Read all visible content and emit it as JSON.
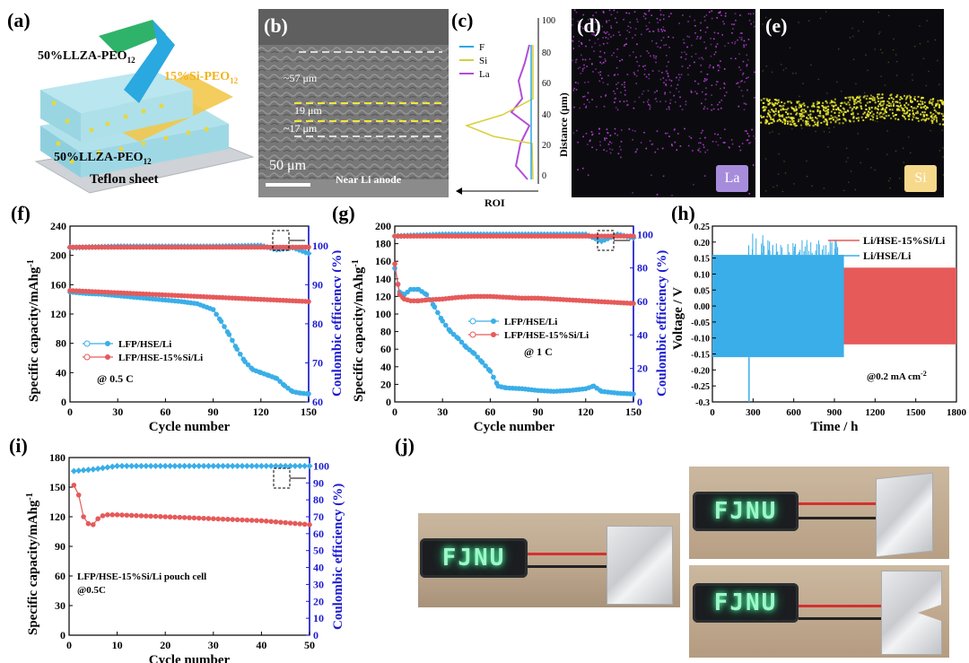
{
  "labels": {
    "a": "(a)",
    "b": "(b)",
    "c": "(c)",
    "d": "(d)",
    "e": "(e)",
    "f": "(f)",
    "g": "(g)",
    "h": "(h)",
    "i": "(i)",
    "j": "(j)"
  },
  "panel_a": {
    "top_layer": "50%LLZA-PEO",
    "mid_layer": "15%Si-PEO",
    "bottom_layer": "50%LLZA-PEO",
    "sub": "12",
    "substrate": "Teflon sheet",
    "colors": {
      "llza": "#9fdbe8",
      "si": "#f2c84b",
      "substrate": "#cfd2d6",
      "arrow_green": "#2fb36a",
      "arrow_blue": "#2aa8e0"
    }
  },
  "panel_b": {
    "dim_top": "~57 μm",
    "dim_mid": "19 μm",
    "dim_bot": "~17 μm",
    "scale": "50 μm",
    "caption": "Near Li anode"
  },
  "panel_c": {
    "legend": [
      "F",
      "Si",
      "La"
    ],
    "colors": [
      "#2aa8e0",
      "#d9cf3a",
      "#b04fd8"
    ],
    "ylabel": "Distance (μm)",
    "xlabel": "ROI",
    "ticks": [
      "100",
      "80",
      "60",
      "40",
      "20",
      "0"
    ]
  },
  "panel_d": {
    "element": "La",
    "color": "#c040e0"
  },
  "panel_e": {
    "element": "Si",
    "color": "#f0ee30"
  },
  "chart_f": {
    "type": "line",
    "xlabel": "Cycle number",
    "ylabel": "Specific capacity/mAhg",
    "ylabel_sup": "-1",
    "y2label": "Coulombic efficiency (%)",
    "xticks": [
      "0",
      "30",
      "60",
      "90",
      "120",
      "150"
    ],
    "yticks": [
      "0",
      "40",
      "80",
      "120",
      "160",
      "200",
      "240"
    ],
    "y2ticks": [
      "60",
      "70",
      "80",
      "90",
      "100"
    ],
    "legend": [
      "LFP/HSE/Li",
      "LFP/HSE-15%Si/Li"
    ],
    "rate": "@ 0.5 C"
  },
  "chart_g": {
    "type": "line",
    "xlabel": "Cycle number",
    "ylabel": "Specific capacity/mAhg",
    "ylabel_sup": "-1",
    "y2label": "Coulombic efficiency (%)",
    "xticks": [
      "0",
      "30",
      "60",
      "90",
      "120",
      "150"
    ],
    "yticks": [
      "0",
      "20",
      "40",
      "60",
      "80",
      "100",
      "120",
      "140",
      "160",
      "180",
      "200"
    ],
    "y2ticks": [
      "0",
      "20",
      "40",
      "60",
      "80",
      "100"
    ],
    "legend": [
      "LFP/HSE/Li",
      "LFP/HSE-15%Si/Li"
    ],
    "rate": "@ 1 C"
  },
  "chart_h": {
    "type": "line",
    "xlabel": "Time / h",
    "ylabel": "Voltage / V",
    "xticks": [
      "0",
      "300",
      "600",
      "900",
      "1200",
      "1500",
      "1800"
    ],
    "yticks": [
      "0.25",
      "0.20",
      "0.15",
      "0.10",
      "0.05",
      "0.00",
      "-0.05",
      "-0.10",
      "-0.15",
      "-0.20",
      "-0.25",
      "-0.3"
    ],
    "legend": [
      "Li/HSE-15%Si/Li",
      "Li/HSE/Li"
    ],
    "current": "@0.2 mA cm",
    "current_sup": "-2"
  },
  "chart_i": {
    "type": "line",
    "xlabel": "Cycle number",
    "ylabel": "Specific capacity/mAhg",
    "ylabel_sup": "-1",
    "y2label": "Coulombic efficiency (%)",
    "xticks": [
      "0",
      "10",
      "20",
      "30",
      "40",
      "50"
    ],
    "yticks": [
      "0",
      "30",
      "60",
      "90",
      "120",
      "150",
      "180"
    ],
    "y2ticks": [
      "0",
      "10",
      "20",
      "30",
      "40",
      "50",
      "60",
      "70",
      "80",
      "90",
      "100"
    ],
    "note1": "LFP/HSE-15%Si/Li pouch cell",
    "note2": "@0.5C"
  },
  "panel_j": {
    "led_text": "FJNU"
  },
  "colors": {
    "blue": "#3aaee8",
    "red": "#e65a5a",
    "axis_blue": "#1a1ad0"
  },
  "chart_data": [
    {
      "id": "f",
      "type": "line",
      "xlim": [
        0,
        150
      ],
      "ylim": [
        0,
        240
      ],
      "y2lim": [
        60,
        105
      ],
      "series": [
        {
          "name": "LFP/HSE/Li",
          "axis": "capacity",
          "x": [
            0,
            10,
            20,
            30,
            40,
            50,
            60,
            70,
            80,
            90,
            95,
            100,
            105,
            110,
            115,
            120,
            125,
            130,
            135,
            140,
            145,
            150
          ],
          "values": [
            150,
            148,
            147,
            145,
            143,
            141,
            139,
            137,
            134,
            126,
            110,
            92,
            72,
            55,
            44,
            40,
            36,
            32,
            22,
            14,
            12,
            11
          ]
        },
        {
          "name": "LFP/HSE-15%Si/Li",
          "axis": "capacity",
          "x": [
            0,
            10,
            20,
            30,
            40,
            50,
            60,
            70,
            80,
            90,
            100,
            110,
            120,
            130,
            140,
            150
          ],
          "values": [
            152,
            151,
            150,
            149,
            148,
            147,
            146,
            145,
            144,
            143,
            142,
            141,
            140,
            139,
            138,
            137
          ]
        },
        {
          "name": "LFP/HSE/Li CE",
          "axis": "ce",
          "x": [
            0,
            30,
            60,
            90,
            120,
            130,
            140,
            150
          ],
          "values": [
            99.5,
            99.8,
            99.8,
            99.8,
            100,
            99,
            99.5,
            98
          ]
        },
        {
          "name": "LFP/HSE-15%Si/Li CE",
          "axis": "ce",
          "x": [
            0,
            30,
            60,
            90,
            120,
            150
          ],
          "values": [
            99.6,
            99.6,
            99.6,
            99.6,
            99.6,
            99.6
          ]
        }
      ]
    },
    {
      "id": "g",
      "type": "line",
      "xlim": [
        0,
        150
      ],
      "ylim": [
        0,
        200
      ],
      "y2lim": [
        0,
        105
      ],
      "series": [
        {
          "name": "LFP/HSE/Li",
          "axis": "capacity",
          "x": [
            0,
            3,
            6,
            10,
            15,
            20,
            25,
            30,
            35,
            40,
            45,
            50,
            55,
            60,
            65,
            70,
            80,
            90,
            100,
            110,
            120,
            125,
            130,
            140,
            150
          ],
          "values": [
            152,
            125,
            122,
            128,
            128,
            122,
            108,
            92,
            80,
            72,
            62,
            55,
            45,
            35,
            18,
            16,
            15,
            13,
            12,
            13,
            15,
            18,
            12,
            10,
            9
          ]
        },
        {
          "name": "LFP/HSE-15%Si/Li",
          "axis": "capacity",
          "x": [
            0,
            3,
            6,
            10,
            15,
            20,
            30,
            40,
            50,
            60,
            70,
            80,
            90,
            100,
            110,
            120,
            130,
            140,
            150
          ],
          "values": [
            157,
            122,
            117,
            115,
            115,
            116,
            117,
            119,
            120,
            120,
            119,
            118,
            118,
            117,
            116,
            115,
            114,
            113,
            112
          ]
        },
        {
          "name": "LFP/HSE/Li CE",
          "axis": "ce",
          "x": [
            0,
            30,
            60,
            90,
            120,
            130,
            140,
            150
          ],
          "values": [
            99,
            100,
            100,
            100,
            100,
            96,
            100,
            98
          ]
        },
        {
          "name": "LFP/HSE-15%Si/Li CE",
          "axis": "ce",
          "x": [
            0,
            30,
            60,
            90,
            120,
            150
          ],
          "values": [
            99,
            99,
            99,
            99,
            99,
            99
          ]
        }
      ]
    },
    {
      "id": "h",
      "type": "line",
      "xlim": [
        0,
        1800
      ],
      "ylim": [
        -0.3,
        0.25
      ],
      "series": [
        {
          "name": "Li/HSE/Li",
          "x": [
            0,
            970
          ],
          "amplitude": 0.16,
          "spikes_max": 0.23,
          "spikes_min": -0.3
        },
        {
          "name": "Li/HSE-15%Si/Li",
          "x": [
            0,
            1800
          ],
          "amplitude": 0.12
        }
      ]
    },
    {
      "id": "i",
      "type": "line",
      "xlim": [
        0,
        50
      ],
      "ylim": [
        0,
        180
      ],
      "y2lim": [
        0,
        105
      ],
      "series": [
        {
          "name": "LFP/HSE-15%Si/Li",
          "axis": "capacity",
          "x": [
            1,
            2,
            3,
            4,
            5,
            6,
            7,
            8,
            10,
            15,
            20,
            25,
            30,
            35,
            40,
            45,
            50
          ],
          "values": [
            152,
            142,
            120,
            113,
            112,
            118,
            121,
            122,
            122,
            121,
            120,
            119,
            118,
            117,
            116,
            114,
            112
          ]
        },
        {
          "name": "LFP/HSE-15%Si/Li CE",
          "axis": "ce",
          "x": [
            1,
            5,
            10,
            20,
            30,
            40,
            50
          ],
          "values": [
            97,
            98,
            100,
            100,
            100,
            100,
            100
          ]
        }
      ]
    }
  ]
}
